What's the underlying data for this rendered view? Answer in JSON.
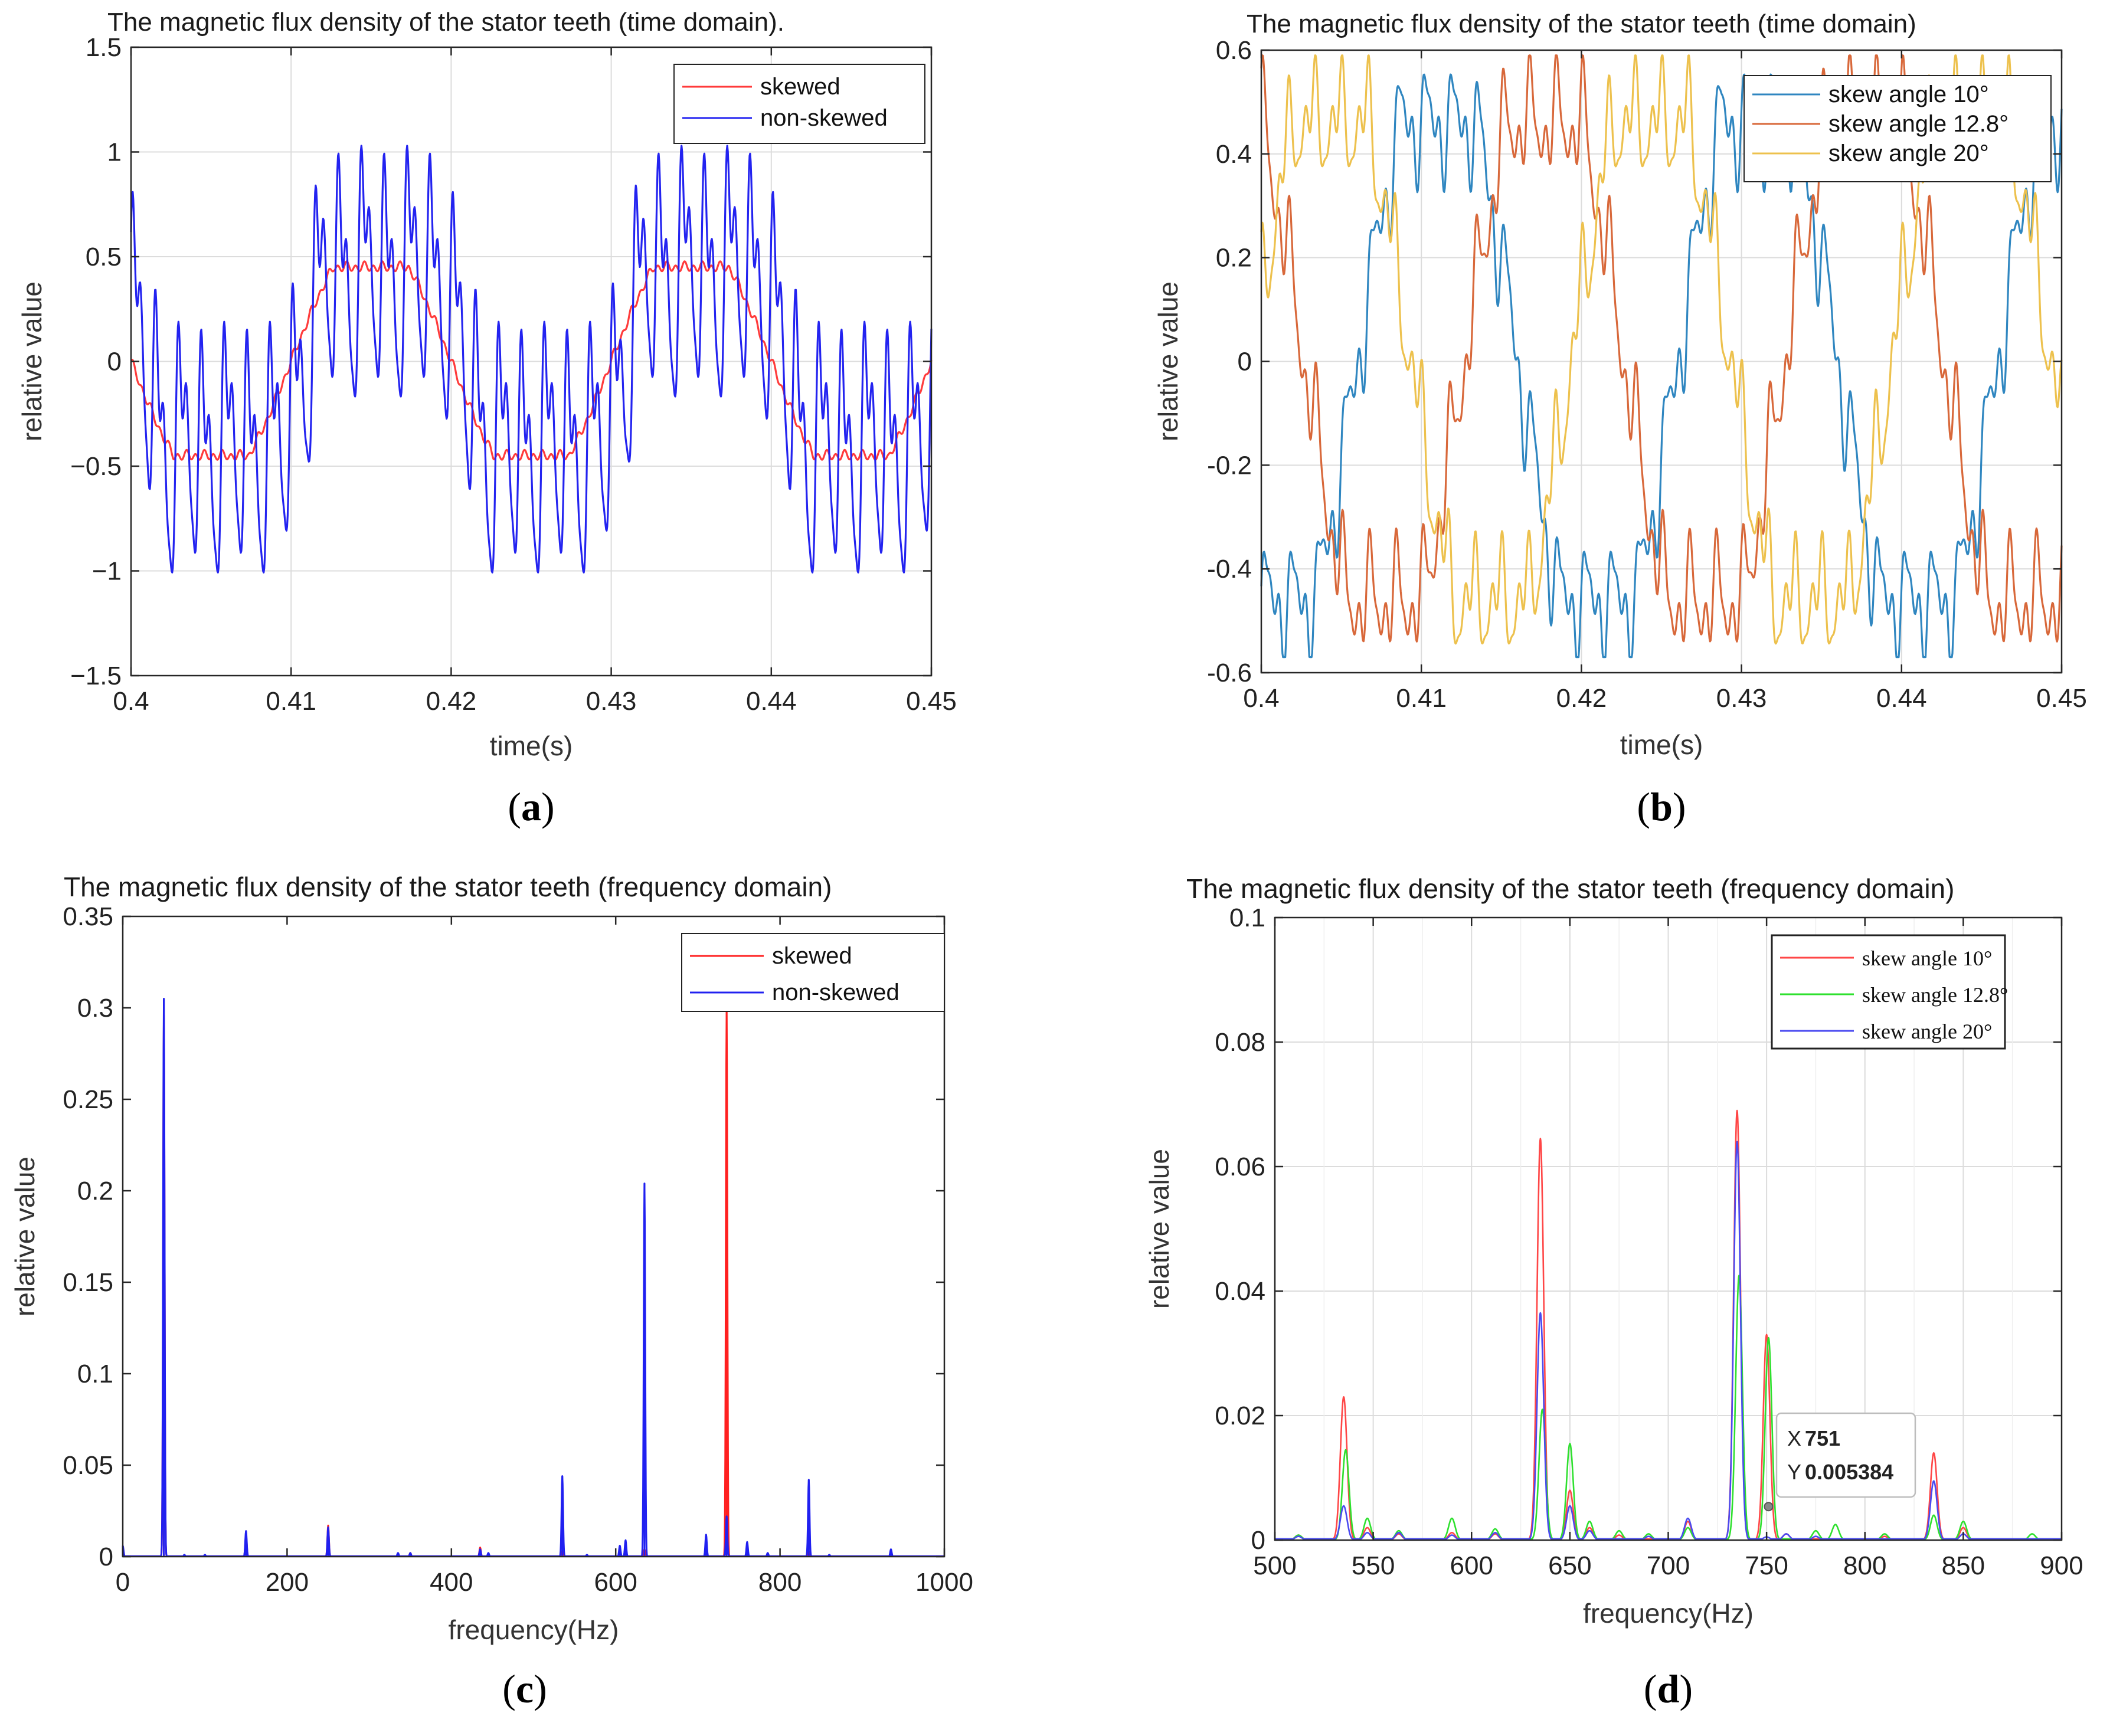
{
  "chart_data": [
    {
      "id": "a",
      "type": "line",
      "title": "The magnetic flux density of the stator teeth (time domain).",
      "xlabel": "time(s)",
      "ylabel": "relative value",
      "xlim": [
        0.4,
        0.45
      ],
      "ylim": [
        -1.5,
        1.5
      ],
      "xticks": [
        "0.4",
        "0.41",
        "0.42",
        "0.43",
        "0.44",
        "0.45"
      ],
      "yticks": [
        "1.5",
        "1",
        "0.5",
        "0",
        "−0.5",
        "−1",
        "−1.5"
      ],
      "grid": true,
      "legend_position": "top-right",
      "caption": "a",
      "series": [
        {
          "name": "skewed",
          "color": "#ff3b3b",
          "model": "trapezoid",
          "amplitude": 0.45,
          "frequency_hz": 50,
          "phase_deg": 0,
          "sign": -1
        },
        {
          "name": "non-skewed",
          "color": "#2323f0",
          "model": "harmonics",
          "amplitude_range": [
            -1.02,
            1.05
          ],
          "fundamental_hz": 50,
          "sign": 1
        }
      ]
    },
    {
      "id": "b",
      "type": "line",
      "title": "The magnetic flux density of the stator teeth (time domain)",
      "xlabel": "time(s)",
      "ylabel": "relative value",
      "xlim": [
        0.4,
        0.45
      ],
      "ylim": [
        -0.6,
        0.6
      ],
      "xticks": [
        "0.4",
        "0.41",
        "0.42",
        "0.43",
        "0.44",
        "0.45"
      ],
      "yticks": [
        "0.6",
        "0.4",
        "0.2",
        "0",
        "-0.2",
        "-0.4",
        "-0.6"
      ],
      "grid": true,
      "legend_position": "top-right",
      "caption": "b",
      "series": [
        {
          "name": "skew angle 10°",
          "color": "#2f86c0",
          "amplitude": 0.5,
          "frequency_hz": 50,
          "phase_deg": -120
        },
        {
          "name": "skew angle 12.8°",
          "color": "#d8683a",
          "amplitude": 0.5,
          "frequency_hz": 50,
          "phase_deg": 120
        },
        {
          "name": "skew angle 20°",
          "color": "#edc14d",
          "amplitude": 0.5,
          "frequency_hz": 50,
          "phase_deg": 0
        }
      ]
    },
    {
      "id": "c",
      "type": "line",
      "title": "The magnetic flux density of the stator teeth (frequency domain)",
      "xlabel": "frequency(Hz)",
      "ylabel": "relative value",
      "xlim": [
        0,
        1000
      ],
      "ylim": [
        0,
        0.35
      ],
      "xticks": [
        "0",
        "200",
        "400",
        "600",
        "800",
        "1000"
      ],
      "yticks": [
        "0.35",
        "0.3",
        "0.25",
        "0.2",
        "0.15",
        "0.1",
        "0.05",
        "0"
      ],
      "grid": false,
      "legend_position": "top-right",
      "caption": "c",
      "series": [
        {
          "name": "skewed",
          "color": "#ff2020",
          "peaks": [
            [
              0,
              0.005
            ],
            [
              50,
              0.296
            ],
            [
              150,
              0.012
            ],
            [
              250,
              0.017
            ],
            [
              350,
              0.002
            ],
            [
              435,
              0.005
            ],
            [
              535,
              0.003
            ],
            [
              635,
              0.004
            ],
            [
              735,
              0.3
            ],
            [
              835,
              0.003
            ],
            [
              935,
              0.002
            ]
          ]
        },
        {
          "name": "non-skewed",
          "color": "#2020f0",
          "peaks": [
            [
              0,
              0.006
            ],
            [
              50,
              0.305
            ],
            [
              75,
              0.001
            ],
            [
              100,
              0.001
            ],
            [
              150,
              0.014
            ],
            [
              250,
              0.016
            ],
            [
              335,
              0.002
            ],
            [
              350,
              0.002
            ],
            [
              435,
              0.004
            ],
            [
              445,
              0.002
            ],
            [
              535,
              0.044
            ],
            [
              565,
              0.001
            ],
            [
              605,
              0.006
            ],
            [
              612,
              0.009
            ],
            [
              635,
              0.204
            ],
            [
              710,
              0.012
            ],
            [
              735,
              0.022
            ],
            [
              760,
              0.008
            ],
            [
              785,
              0.002
            ],
            [
              835,
              0.042
            ],
            [
              860,
              0.001
            ],
            [
              935,
              0.004
            ]
          ]
        }
      ]
    },
    {
      "id": "d",
      "type": "line",
      "title": "The magnetic flux density of the stator teeth (frequency domain)",
      "xlabel": "frequency(Hz)",
      "ylabel": "relative value",
      "xlim": [
        500,
        900
      ],
      "ylim": [
        0,
        0.1
      ],
      "xticks": [
        "500",
        "550",
        "600",
        "650",
        "700",
        "750",
        "800",
        "850",
        "900"
      ],
      "yticks": [
        "0.1",
        "0.08",
        "0.06",
        "0.04",
        "0.02",
        "0"
      ],
      "grid": true,
      "legend_position": "top-right",
      "caption": "d",
      "datatip": {
        "x_label": "X",
        "x_value": "751",
        "y_label": "Y",
        "y_value": "0.005384",
        "x": 751,
        "y": 0.005384
      },
      "series": [
        {
          "name": "skew angle 10°",
          "color": "#ff4646",
          "peaks": [
            [
              512,
              0.0008
            ],
            [
              535,
              0.023
            ],
            [
              547,
              0.002
            ],
            [
              563,
              0.001
            ],
            [
              590,
              0.0012
            ],
            [
              612,
              0.001
            ],
            [
              635,
              0.0645
            ],
            [
              650,
              0.008
            ],
            [
              660,
              0.002
            ],
            [
              675,
              0.0008
            ],
            [
              710,
              0.003
            ],
            [
              735,
              0.069
            ],
            [
              750,
              0.033
            ],
            [
              760,
              0.001
            ],
            [
              810,
              0.0006
            ],
            [
              835,
              0.014
            ],
            [
              850,
              0.002
            ]
          ]
        },
        {
          "name": "skew angle 12.8°",
          "color": "#2ee02e",
          "peaks": [
            [
              512,
              0.0008
            ],
            [
              536,
              0.0145
            ],
            [
              547,
              0.0035
            ],
            [
              563,
              0.0015
            ],
            [
              590,
              0.0035
            ],
            [
              612,
              0.0018
            ],
            [
              636,
              0.021
            ],
            [
              650,
              0.0155
            ],
            [
              660,
              0.003
            ],
            [
              675,
              0.0015
            ],
            [
              690,
              0.001
            ],
            [
              710,
              0.002
            ],
            [
              736,
              0.0425
            ],
            [
              751,
              0.0325
            ],
            [
              775,
              0.0015
            ],
            [
              785,
              0.0025
            ],
            [
              810,
              0.001
            ],
            [
              835,
              0.004
            ],
            [
              850,
              0.003
            ],
            [
              885,
              0.001
            ]
          ]
        },
        {
          "name": "skew angle 20°",
          "color": "#4a4af0",
          "peaks": [
            [
              512,
              0.0006
            ],
            [
              535,
              0.0055
            ],
            [
              547,
              0.0012
            ],
            [
              563,
              0.0012
            ],
            [
              590,
              0.0008
            ],
            [
              612,
              0.0012
            ],
            [
              635,
              0.0365
            ],
            [
              650,
              0.0055
            ],
            [
              660,
              0.0015
            ],
            [
              690,
              0.0006
            ],
            [
              710,
              0.0035
            ],
            [
              735,
              0.064
            ],
            [
              750,
              0.0005
            ],
            [
              760,
              0.001
            ],
            [
              775,
              0.0006
            ],
            [
              835,
              0.0095
            ],
            [
              850,
              0.001
            ]
          ]
        }
      ]
    }
  ]
}
